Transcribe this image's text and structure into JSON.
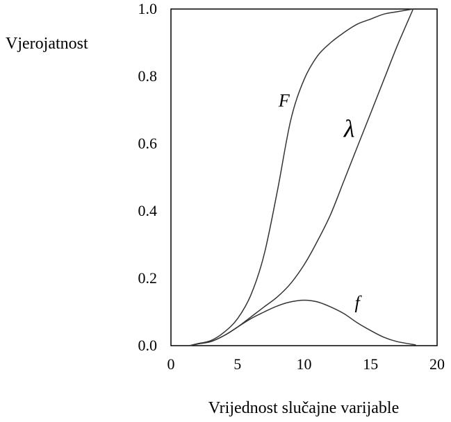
{
  "chart_data": {
    "type": "line",
    "xlabel": "Vrijednost slučajne varijable",
    "ylabel": "Vjerojatnost",
    "xlim": [
      0,
      20
    ],
    "ylim": [
      0,
      1
    ],
    "x_ticks": [
      "0",
      "5",
      "10",
      "15",
      "20"
    ],
    "y_ticks": [
      "0.0",
      "0.2",
      "0.4",
      "0.6",
      "0.8",
      "1.0"
    ],
    "grid": false,
    "series": [
      {
        "name": "F",
        "x": [
          1.4,
          2,
          3,
          4,
          5,
          6,
          7,
          8,
          9,
          10,
          11,
          12,
          13,
          14,
          15,
          16,
          17,
          18.2
        ],
        "y": [
          0.0,
          0.006,
          0.015,
          0.04,
          0.08,
          0.15,
          0.27,
          0.46,
          0.67,
          0.79,
          0.86,
          0.9,
          0.93,
          0.955,
          0.97,
          0.985,
          0.992,
          1.0
        ]
      },
      {
        "name": "λ",
        "x": [
          1.4,
          2,
          3,
          4,
          5,
          6,
          7,
          8,
          9,
          10,
          11,
          12,
          13,
          14,
          15,
          16,
          17,
          18.2
        ],
        "y": [
          0.0,
          0.005,
          0.012,
          0.03,
          0.055,
          0.085,
          0.115,
          0.145,
          0.185,
          0.24,
          0.31,
          0.39,
          0.49,
          0.59,
          0.69,
          0.79,
          0.89,
          1.0
        ]
      },
      {
        "name": "f",
        "x": [
          1.4,
          2,
          3,
          4,
          5,
          6,
          7,
          8,
          9,
          10,
          11,
          12,
          13,
          14,
          15,
          16,
          17,
          18.4
        ],
        "y": [
          0.0,
          0.005,
          0.012,
          0.03,
          0.055,
          0.08,
          0.1,
          0.118,
          0.13,
          0.135,
          0.13,
          0.115,
          0.095,
          0.068,
          0.045,
          0.025,
          0.012,
          0.002
        ]
      }
    ],
    "curve_labels": [
      {
        "text": "F",
        "x": 8.5,
        "y": 0.71
      },
      {
        "text": "λ",
        "x": 13.4,
        "y": 0.62
      },
      {
        "text": "f",
        "x": 14.0,
        "y": 0.11
      }
    ]
  }
}
